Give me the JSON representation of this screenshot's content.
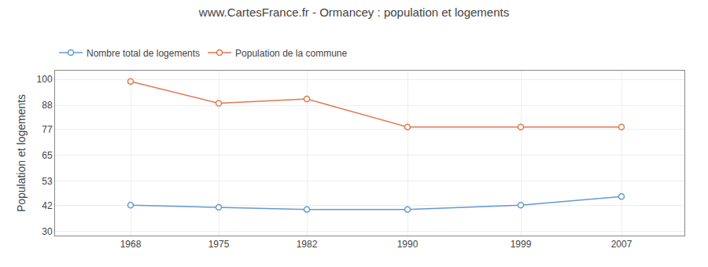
{
  "chart_data": {
    "type": "line",
    "title": "www.CartesFrance.fr - Ormancey : population et logements",
    "ylabel": "Population et logements",
    "x": [
      1968,
      1975,
      1982,
      1990,
      1999,
      2007
    ],
    "series": [
      {
        "name": "Nombre total de logements",
        "color": "#6699cc",
        "values": [
          42,
          41,
          40,
          40,
          42,
          46
        ]
      },
      {
        "name": "Population de la commune",
        "color": "#e07850",
        "values": [
          99,
          89,
          91,
          78,
          78,
          78
        ]
      }
    ],
    "xlim": [
      1962,
      2012
    ],
    "xticks": [
      1968,
      1975,
      1982,
      1990,
      1999,
      2007
    ],
    "ylim": [
      28,
      104
    ],
    "yticks": [
      30,
      42,
      53,
      65,
      77,
      88,
      100
    ],
    "grid": true,
    "legend": "upper left",
    "marker": "circle"
  }
}
